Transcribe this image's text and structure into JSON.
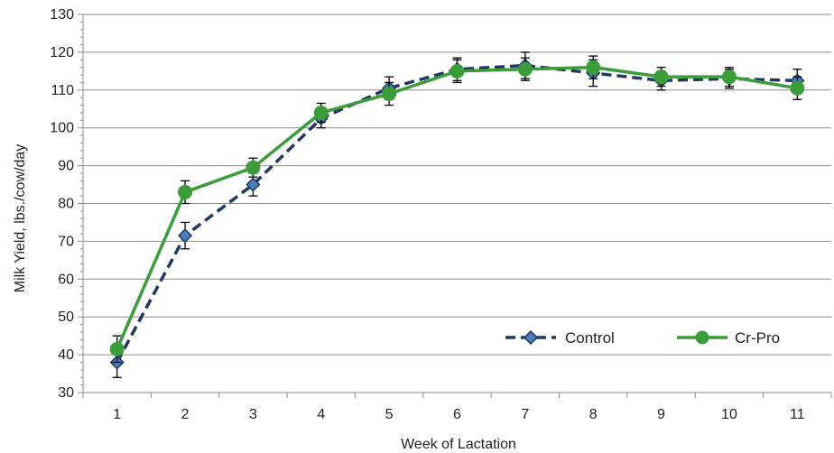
{
  "chart_data": {
    "type": "line",
    "xlabel": "Week of Lactation",
    "ylabel": "Milk Yield, lbs./cow/day",
    "categories": [
      "1",
      "2",
      "3",
      "4",
      "5",
      "6",
      "7",
      "8",
      "9",
      "10",
      "11"
    ],
    "ylim": [
      30,
      130
    ],
    "yticks": [
      30,
      40,
      50,
      60,
      70,
      80,
      90,
      100,
      110,
      120,
      130
    ],
    "grid": true,
    "legend": "bottom-right",
    "series": [
      {
        "name": "Control",
        "color": "#1f3864",
        "style": "dashed",
        "marker": "diamond",
        "marker_color": "#4a7ebb",
        "values": [
          38,
          71.5,
          85,
          102.5,
          110.5,
          115.5,
          116.5,
          114.5,
          112.5,
          113,
          112.5
        ],
        "errors": [
          4,
          3.5,
          3,
          2.5,
          3,
          3,
          3.5,
          3.5,
          2.5,
          2.5,
          3
        ]
      },
      {
        "name": "Cr-Pro",
        "color": "#3a9d3a",
        "style": "solid",
        "marker": "circle",
        "marker_color": "#3a9d3a",
        "values": [
          41.5,
          83,
          89.5,
          104,
          109,
          115,
          115.5,
          116,
          113.5,
          113.5,
          110.5
        ],
        "errors": [
          3.5,
          3,
          2.5,
          2.5,
          3,
          3,
          3,
          3,
          2.5,
          2.5,
          3
        ]
      }
    ]
  }
}
